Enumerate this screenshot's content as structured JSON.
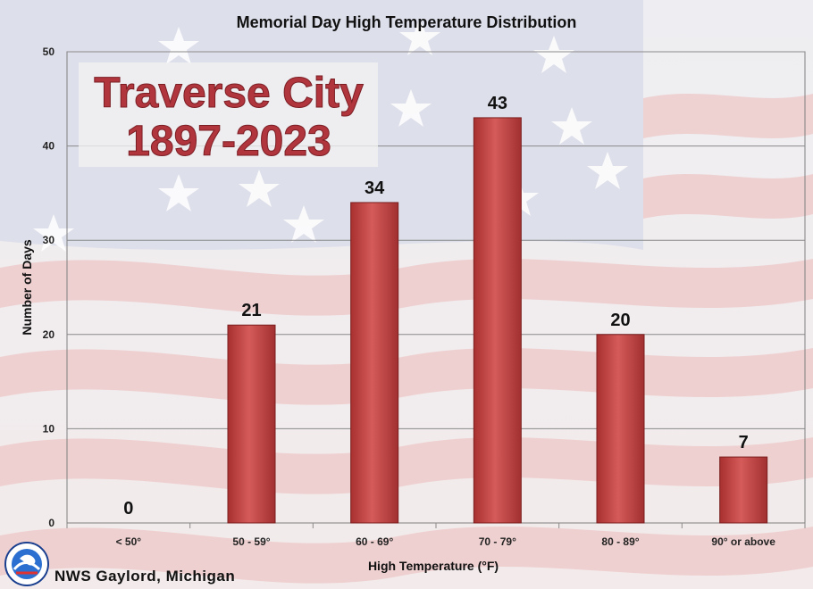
{
  "chart_data": {
    "type": "bar",
    "title": "Memorial Day High Temperature Distribution",
    "overlay_title": [
      "Traverse City",
      "1897-2023"
    ],
    "xlabel": "High Temperature (°F)",
    "ylabel": "Number of Days",
    "categories": [
      "< 50°",
      "50 - 59°",
      "60 - 69°",
      "70 - 79°",
      "80 - 89°",
      "90° or above"
    ],
    "values": [
      0,
      21,
      34,
      43,
      20,
      7
    ],
    "ylim": [
      0,
      50
    ],
    "yticks": [
      "0",
      "10",
      "20",
      "30",
      "40",
      "50"
    ],
    "grid": true,
    "bar_color": "#c9504f"
  },
  "footer": {
    "credit": "NWS Gaylord, Michigan",
    "logo_text": "NATIONAL WEATHER SERVICE"
  }
}
